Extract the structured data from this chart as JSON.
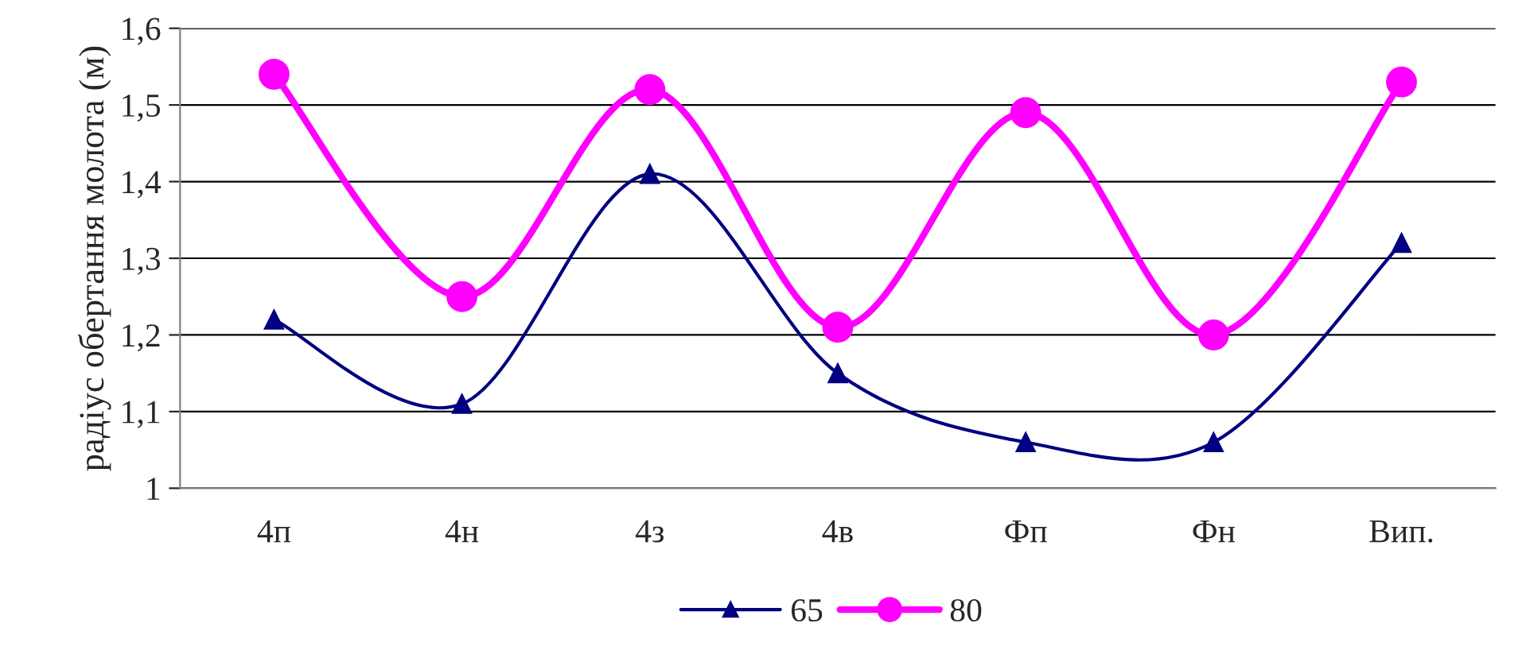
{
  "chart_data": {
    "type": "line",
    "ylabel": "радіус обертання молота (м)",
    "categories": [
      "4п",
      "4н",
      "4з",
      "4в",
      "Фп",
      "Фн",
      "Вип."
    ],
    "series": [
      {
        "name": "65",
        "color": "#000080",
        "marker": "triangle",
        "values": [
          1.22,
          1.11,
          1.41,
          1.15,
          1.06,
          1.06,
          1.32
        ]
      },
      {
        "name": "80",
        "color": "#ff00ff",
        "marker": "circle",
        "values": [
          1.54,
          1.25,
          1.52,
          1.21,
          1.49,
          1.2,
          1.53
        ]
      }
    ],
    "ylim": [
      1,
      1.6
    ],
    "yticks": [
      {
        "value": 1,
        "label": "1"
      },
      {
        "value": 1.1,
        "label": "1,1"
      },
      {
        "value": 1.2,
        "label": "1,2"
      },
      {
        "value": 1.3,
        "label": "1,3"
      },
      {
        "value": 1.4,
        "label": "1,4"
      },
      {
        "value": 1.5,
        "label": "1,5"
      },
      {
        "value": 1.6,
        "label": "1,6"
      }
    ],
    "grid": "y",
    "legend": "bottom",
    "line_style": "solid"
  }
}
